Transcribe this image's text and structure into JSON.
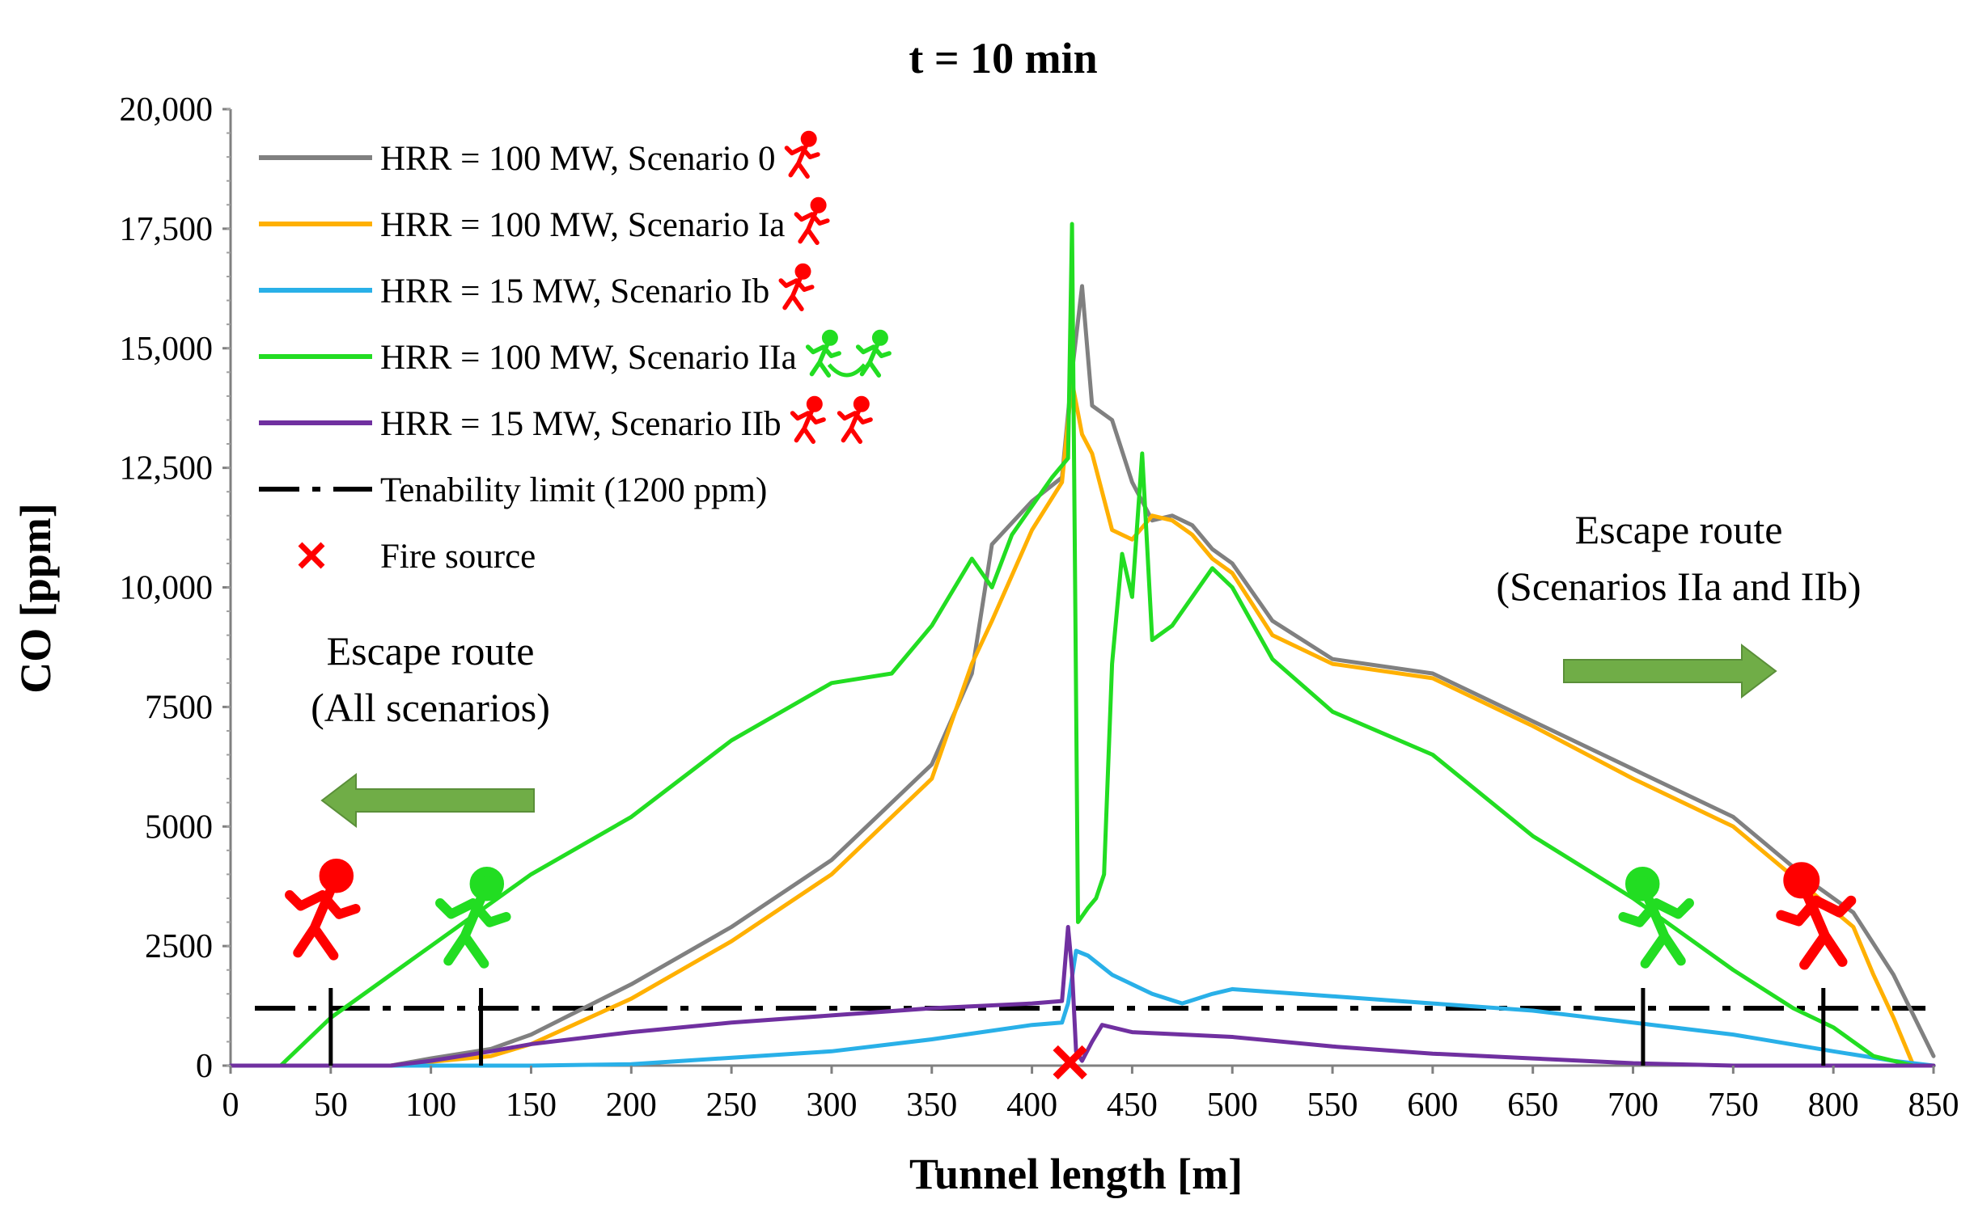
{
  "chart_data": {
    "type": "line",
    "title": "t = 10 min",
    "xlabel": "Tunnel length [m]",
    "ylabel": "CO [ppm]",
    "xlim": [
      0,
      850
    ],
    "ylim": [
      0,
      20000
    ],
    "x_ticks": [
      0,
      50,
      100,
      150,
      200,
      250,
      300,
      350,
      400,
      450,
      500,
      550,
      600,
      650,
      700,
      750,
      800,
      850
    ],
    "y_ticks": [
      {
        "value": 0,
        "label": "0"
      },
      {
        "value": 2500,
        "label": "2500"
      },
      {
        "value": 5000,
        "label": "5000"
      },
      {
        "value": 7500,
        "label": "7500"
      },
      {
        "value": 10000,
        "label": "10,000"
      },
      {
        "value": 12500,
        "label": "12,500"
      },
      {
        "value": 15000,
        "label": "15,000"
      },
      {
        "value": 17500,
        "label": "17,500"
      },
      {
        "value": 20000,
        "label": "20,000"
      }
    ],
    "legend_position": "top-left",
    "series": [
      {
        "name": "HRR = 100 MW, Scenario 0",
        "color": "#808080",
        "points": [
          [
            80,
            0
          ],
          [
            100,
            150
          ],
          [
            130,
            350
          ],
          [
            150,
            650
          ],
          [
            200,
            1700
          ],
          [
            250,
            2900
          ],
          [
            300,
            4300
          ],
          [
            350,
            6300
          ],
          [
            370,
            8200
          ],
          [
            380,
            10900
          ],
          [
            400,
            11800
          ],
          [
            415,
            12300
          ],
          [
            420,
            14500
          ],
          [
            425,
            16300
          ],
          [
            430,
            13800
          ],
          [
            440,
            13500
          ],
          [
            450,
            12200
          ],
          [
            460,
            11400
          ],
          [
            470,
            11500
          ],
          [
            480,
            11300
          ],
          [
            490,
            10800
          ],
          [
            500,
            10500
          ],
          [
            520,
            9300
          ],
          [
            550,
            8500
          ],
          [
            600,
            8200
          ],
          [
            650,
            7200
          ],
          [
            700,
            6200
          ],
          [
            750,
            5200
          ],
          [
            790,
            3800
          ],
          [
            810,
            3200
          ],
          [
            830,
            1900
          ],
          [
            850,
            200
          ]
        ]
      },
      {
        "name": "HRR = 100 MW, Scenario Ia",
        "color": "#FFB000",
        "points": [
          [
            80,
            0
          ],
          [
            100,
            80
          ],
          [
            130,
            200
          ],
          [
            150,
            450
          ],
          [
            200,
            1400
          ],
          [
            250,
            2600
          ],
          [
            300,
            4000
          ],
          [
            350,
            6000
          ],
          [
            370,
            8400
          ],
          [
            380,
            9300
          ],
          [
            400,
            11200
          ],
          [
            415,
            12200
          ],
          [
            420,
            14300
          ],
          [
            425,
            13200
          ],
          [
            430,
            12800
          ],
          [
            440,
            11200
          ],
          [
            450,
            11000
          ],
          [
            460,
            11500
          ],
          [
            470,
            11400
          ],
          [
            480,
            11100
          ],
          [
            490,
            10600
          ],
          [
            500,
            10300
          ],
          [
            520,
            9000
          ],
          [
            550,
            8400
          ],
          [
            600,
            8100
          ],
          [
            650,
            7100
          ],
          [
            700,
            6000
          ],
          [
            750,
            5000
          ],
          [
            790,
            3600
          ],
          [
            810,
            2900
          ],
          [
            820,
            1900
          ],
          [
            830,
            1000
          ],
          [
            840,
            0
          ],
          [
            850,
            0
          ]
        ]
      },
      {
        "name": "HRR = 15 MW, Scenario Ib",
        "color": "#29B0E8",
        "points": [
          [
            0,
            0
          ],
          [
            100,
            0
          ],
          [
            150,
            0
          ],
          [
            200,
            30
          ],
          [
            300,
            300
          ],
          [
            350,
            550
          ],
          [
            400,
            850
          ],
          [
            415,
            900
          ],
          [
            418,
            1300
          ],
          [
            422,
            2400
          ],
          [
            428,
            2300
          ],
          [
            440,
            1900
          ],
          [
            460,
            1500
          ],
          [
            475,
            1300
          ],
          [
            490,
            1500
          ],
          [
            500,
            1600
          ],
          [
            550,
            1450
          ],
          [
            600,
            1300
          ],
          [
            650,
            1150
          ],
          [
            700,
            900
          ],
          [
            750,
            650
          ],
          [
            800,
            300
          ],
          [
            830,
            100
          ],
          [
            850,
            0
          ]
        ]
      },
      {
        "name": "HRR = 100 MW, Scenario IIa",
        "color": "#22DD22",
        "points": [
          [
            25,
            0
          ],
          [
            50,
            1000
          ],
          [
            100,
            2500
          ],
          [
            150,
            4000
          ],
          [
            200,
            5200
          ],
          [
            250,
            6800
          ],
          [
            300,
            8000
          ],
          [
            330,
            8200
          ],
          [
            350,
            9200
          ],
          [
            370,
            10600
          ],
          [
            380,
            10000
          ],
          [
            390,
            11100
          ],
          [
            410,
            12300
          ],
          [
            418,
            12700
          ],
          [
            420,
            17600
          ],
          [
            423,
            3000
          ],
          [
            428,
            3300
          ],
          [
            432,
            3500
          ],
          [
            436,
            4000
          ],
          [
            440,
            8400
          ],
          [
            445,
            10700
          ],
          [
            450,
            9800
          ],
          [
            455,
            12800
          ],
          [
            460,
            8900
          ],
          [
            470,
            9200
          ],
          [
            480,
            9800
          ],
          [
            490,
            10400
          ],
          [
            500,
            10000
          ],
          [
            520,
            8500
          ],
          [
            550,
            7400
          ],
          [
            600,
            6500
          ],
          [
            650,
            4800
          ],
          [
            700,
            3500
          ],
          [
            750,
            2000
          ],
          [
            780,
            1200
          ],
          [
            800,
            800
          ],
          [
            820,
            200
          ],
          [
            840,
            0
          ],
          [
            850,
            0
          ]
        ]
      },
      {
        "name": "HRR = 15 MW, Scenario IIb",
        "color": "#7030A0",
        "points": [
          [
            0,
            0
          ],
          [
            80,
            0
          ],
          [
            100,
            100
          ],
          [
            130,
            300
          ],
          [
            150,
            450
          ],
          [
            200,
            700
          ],
          [
            250,
            900
          ],
          [
            300,
            1050
          ],
          [
            350,
            1200
          ],
          [
            400,
            1300
          ],
          [
            415,
            1350
          ],
          [
            418,
            2900
          ],
          [
            420,
            2000
          ],
          [
            422,
            300
          ],
          [
            425,
            100
          ],
          [
            430,
            500
          ],
          [
            435,
            850
          ],
          [
            450,
            700
          ],
          [
            500,
            600
          ],
          [
            550,
            400
          ],
          [
            600,
            250
          ],
          [
            650,
            150
          ],
          [
            700,
            50
          ],
          [
            750,
            0
          ],
          [
            800,
            0
          ],
          [
            850,
            0
          ]
        ]
      }
    ],
    "reference_lines": [
      {
        "name": "Tenability limit (1200 ppm)",
        "y": 1200,
        "style": "dash-dot",
        "color": "#000000"
      }
    ],
    "markers": [
      {
        "name": "Fire source",
        "x": 419,
        "y": 0,
        "symbol": "x",
        "color": "#FF0000"
      }
    ],
    "vertical_markers": [
      50,
      125,
      705,
      795
    ]
  },
  "legend": [
    {
      "label": "HRR = 100 MW, Scenario 0",
      "color": "#808080",
      "kind": "line",
      "icon": "runner-red-icon"
    },
    {
      "label": "HRR = 100 MW, Scenario Ia",
      "color": "#FFB000",
      "kind": "line",
      "icon": "runner-red-icon"
    },
    {
      "label": "HRR = 15 MW, Scenario Ib",
      "color": "#29B0E8",
      "kind": "line",
      "icon": "runner-red-icon"
    },
    {
      "label": "HRR = 100 MW, Scenario IIa",
      "color": "#22DD22",
      "kind": "line",
      "icon": "runners-green-icon"
    },
    {
      "label": "HRR = 15 MW, Scenario IIb",
      "color": "#7030A0",
      "kind": "line",
      "icon": "runners-red-icon"
    },
    {
      "label": "Tenability limit (1200 ppm)",
      "color": "#000000",
      "kind": "dashdot"
    },
    {
      "label": "Fire source",
      "color": "#FF0000",
      "kind": "x"
    }
  ],
  "annotations": {
    "escape_left": {
      "line1": "Escape route",
      "line2": "(All scenarios)",
      "arrow_color": "#70AD47",
      "arrow_direction": "left"
    },
    "escape_right": {
      "line1": "Escape route",
      "line2": "(Scenarios IIa and IIb)",
      "arrow_color": "#70AD47",
      "arrow_direction": "right"
    }
  },
  "people_icons": [
    {
      "name": "runner-red-icon",
      "color": "#FF0000"
    },
    {
      "name": "runner-green-icon",
      "color": "#22DD22"
    }
  ]
}
